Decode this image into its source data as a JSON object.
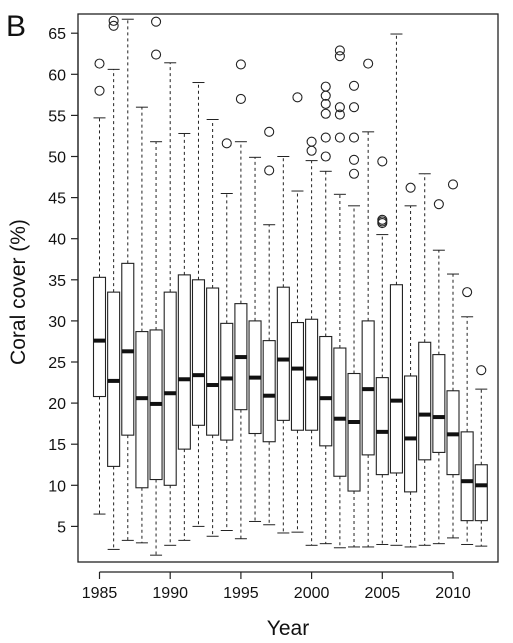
{
  "chart_data": {
    "type": "boxplot",
    "panel_label": "B",
    "xlabel": "Year",
    "ylabel": "Coral cover (%)",
    "ylim": [
      0,
      69
    ],
    "xlim": [
      1984.1,
      2013.3
    ],
    "x_ticks": [
      1985,
      1990,
      1995,
      2000,
      2005,
      2010
    ],
    "y_ticks": [
      5,
      10,
      15,
      20,
      25,
      30,
      35,
      40,
      45,
      50,
      55,
      60,
      65
    ],
    "grid": false,
    "legend": "none",
    "boxes": [
      {
        "year": 1985,
        "whisker_low": 6.5,
        "q1": 20.8,
        "median": 27.6,
        "q3": 35.3,
        "whisker_high": 54.7,
        "outliers": [
          58.0,
          61.3
        ]
      },
      {
        "year": 1986,
        "whisker_low": 2.2,
        "q1": 12.3,
        "median": 22.7,
        "q3": 33.5,
        "whisker_high": 60.6,
        "outliers": [
          65.9,
          66.5
        ]
      },
      {
        "year": 1987,
        "whisker_low": 3.3,
        "q1": 16.1,
        "median": 26.3,
        "q3": 37.0,
        "whisker_high": 66.7,
        "outliers": []
      },
      {
        "year": 1988,
        "whisker_low": 3.0,
        "q1": 9.7,
        "median": 20.6,
        "q3": 28.7,
        "whisker_high": 56.0,
        "outliers": []
      },
      {
        "year": 1989,
        "whisker_low": 1.5,
        "q1": 10.7,
        "median": 19.9,
        "q3": 28.9,
        "whisker_high": 51.8,
        "outliers": [
          62.4,
          66.4
        ]
      },
      {
        "year": 1990,
        "whisker_low": 2.7,
        "q1": 10.0,
        "median": 21.2,
        "q3": 33.5,
        "whisker_high": 61.4,
        "outliers": []
      },
      {
        "year": 1991,
        "whisker_low": 3.3,
        "q1": 14.4,
        "median": 22.9,
        "q3": 35.6,
        "whisker_high": 52.8,
        "outliers": []
      },
      {
        "year": 1992,
        "whisker_low": 5.0,
        "q1": 17.3,
        "median": 23.4,
        "q3": 35.0,
        "whisker_high": 59.0,
        "outliers": []
      },
      {
        "year": 1993,
        "whisker_low": 3.8,
        "q1": 16.1,
        "median": 22.2,
        "q3": 34.0,
        "whisker_high": 54.5,
        "outliers": []
      },
      {
        "year": 1994,
        "whisker_low": 4.5,
        "q1": 15.5,
        "median": 23.0,
        "q3": 29.7,
        "whisker_high": 45.5,
        "outliers": [
          51.6
        ]
      },
      {
        "year": 1995,
        "whisker_low": 3.5,
        "q1": 19.2,
        "median": 25.6,
        "q3": 32.1,
        "whisker_high": 51.8,
        "outliers": [
          57.0,
          61.2
        ]
      },
      {
        "year": 1996,
        "whisker_low": 5.6,
        "q1": 16.3,
        "median": 23.1,
        "q3": 30.0,
        "whisker_high": 49.9,
        "outliers": []
      },
      {
        "year": 1997,
        "whisker_low": 5.2,
        "q1": 15.3,
        "median": 20.9,
        "q3": 27.6,
        "whisker_high": 41.7,
        "outliers": [
          48.3,
          53.0
        ]
      },
      {
        "year": 1998,
        "whisker_low": 4.2,
        "q1": 17.9,
        "median": 25.3,
        "q3": 34.1,
        "whisker_high": 50.0,
        "outliers": []
      },
      {
        "year": 1999,
        "whisker_low": 4.3,
        "q1": 16.7,
        "median": 24.2,
        "q3": 29.8,
        "whisker_high": 45.8,
        "outliers": [
          57.2
        ]
      },
      {
        "year": 2000,
        "whisker_low": 2.7,
        "q1": 16.7,
        "median": 23.0,
        "q3": 30.2,
        "whisker_high": 49.5,
        "outliers": [
          50.7,
          51.8
        ]
      },
      {
        "year": 2001,
        "whisker_low": 2.9,
        "q1": 14.8,
        "median": 20.6,
        "q3": 28.1,
        "whisker_high": 48.2,
        "outliers": [
          50.0,
          52.3,
          55.2,
          56.4,
          57.4,
          58.5
        ]
      },
      {
        "year": 2002,
        "whisker_low": 2.4,
        "q1": 11.1,
        "median": 18.1,
        "q3": 26.7,
        "whisker_high": 45.4,
        "outliers": [
          52.3,
          55.1,
          56.0,
          62.2,
          62.9
        ]
      },
      {
        "year": 2003,
        "whisker_low": 2.5,
        "q1": 9.3,
        "median": 17.7,
        "q3": 23.6,
        "whisker_high": 44.0,
        "outliers": [
          47.9,
          49.6,
          52.3,
          56.0,
          58.6
        ]
      },
      {
        "year": 2004,
        "whisker_low": 2.5,
        "q1": 13.7,
        "median": 21.7,
        "q3": 30.0,
        "whisker_high": 53.0,
        "outliers": [
          61.3
        ]
      },
      {
        "year": 2005,
        "whisker_low": 2.8,
        "q1": 11.3,
        "median": 16.5,
        "q3": 23.1,
        "whisker_high": 40.5,
        "outliers": [
          41.9,
          42.1,
          42.3,
          49.4
        ]
      },
      {
        "year": 2006,
        "whisker_low": 2.7,
        "q1": 11.5,
        "median": 20.3,
        "q3": 34.4,
        "whisker_high": 64.9,
        "outliers": []
      },
      {
        "year": 2007,
        "whisker_low": 2.5,
        "q1": 9.2,
        "median": 15.7,
        "q3": 23.3,
        "whisker_high": 44.0,
        "outliers": [
          46.2
        ]
      },
      {
        "year": 2008,
        "whisker_low": 2.7,
        "q1": 13.1,
        "median": 18.6,
        "q3": 27.4,
        "whisker_high": 47.9,
        "outliers": []
      },
      {
        "year": 2009,
        "whisker_low": 2.9,
        "q1": 14.0,
        "median": 18.3,
        "q3": 25.9,
        "whisker_high": 38.6,
        "outliers": [
          44.2
        ]
      },
      {
        "year": 2010,
        "whisker_low": 3.6,
        "q1": 11.3,
        "median": 16.2,
        "q3": 21.5,
        "whisker_high": 35.7,
        "outliers": [
          46.6
        ]
      },
      {
        "year": 2011,
        "whisker_low": 2.8,
        "q1": 5.7,
        "median": 10.5,
        "q3": 16.5,
        "whisker_high": 30.5,
        "outliers": [
          33.5
        ]
      },
      {
        "year": 2012,
        "whisker_low": 2.6,
        "q1": 5.7,
        "median": 10.0,
        "q3": 12.5,
        "whisker_high": 21.7,
        "outliers": [
          24.0
        ]
      }
    ]
  }
}
